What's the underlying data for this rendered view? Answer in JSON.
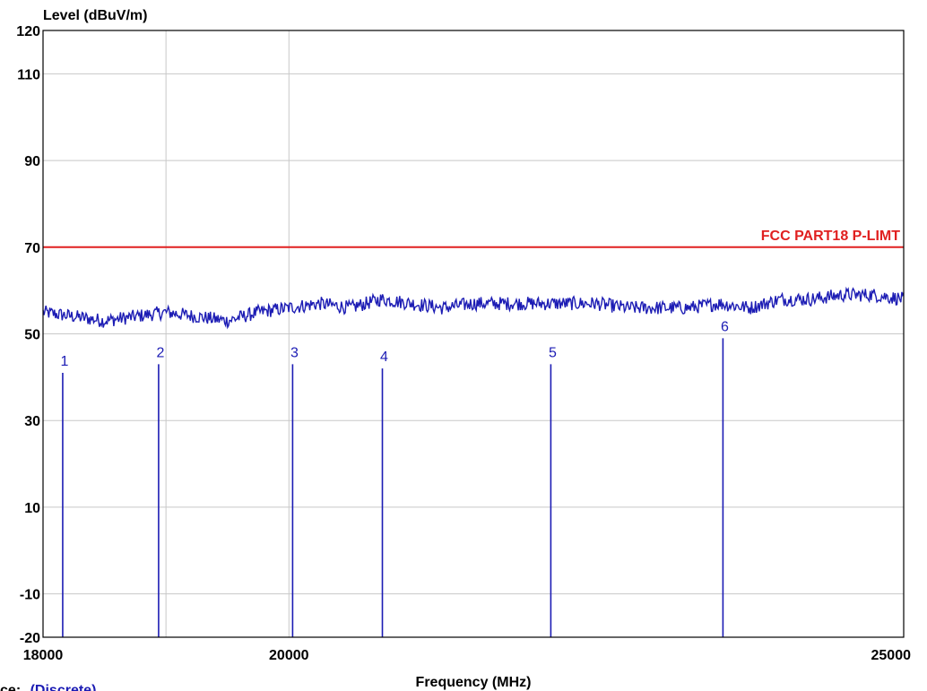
{
  "chart_data": {
    "type": "line",
    "ylabel": "Level (dBuV/m)",
    "xlabel": "Frequency (MHz)",
    "xlim": [
      18000,
      25000
    ],
    "ylim": [
      -20,
      120
    ],
    "x_ticks": [
      18000,
      20000,
      25000
    ],
    "x_gridlines": [
      19000,
      20000
    ],
    "y_ticks": [
      120,
      110,
      90,
      70,
      50,
      30,
      10,
      -10,
      -20
    ],
    "y_gridlines": [
      110,
      90,
      70,
      50,
      30,
      10,
      -10
    ],
    "limit": {
      "name": "FCC PART18 P-LIMT",
      "value": 70,
      "color": "#e02020"
    },
    "trace": {
      "color": "#1c1cb4",
      "x": [
        18000,
        18250,
        18500,
        18750,
        19000,
        19250,
        19500,
        19750,
        20000,
        20250,
        20500,
        20750,
        21000,
        21250,
        21500,
        21750,
        22000,
        22250,
        22500,
        22750,
        23000,
        23250,
        23500,
        23750,
        24000,
        24250,
        24500,
        24750,
        25000
      ],
      "y": [
        55,
        54,
        53,
        54,
        55,
        54,
        53,
        55,
        56,
        57,
        56,
        58,
        57,
        56,
        57,
        57,
        57,
        57,
        57,
        56,
        56,
        56,
        57,
        56,
        58,
        58,
        59,
        59,
        58
      ]
    },
    "markers": [
      {
        "label": "1",
        "x": 18160,
        "y": 41
      },
      {
        "label": "2",
        "x": 18940,
        "y": 43
      },
      {
        "label": "3",
        "x": 20030,
        "y": 43
      },
      {
        "label": "4",
        "x": 20760,
        "y": 42
      },
      {
        "label": "5",
        "x": 22130,
        "y": 43
      },
      {
        "label": "6",
        "x": 23530,
        "y": 49
      }
    ]
  },
  "trace_footer": {
    "prefix": "Trace:",
    "value": "(Discrete)"
  }
}
